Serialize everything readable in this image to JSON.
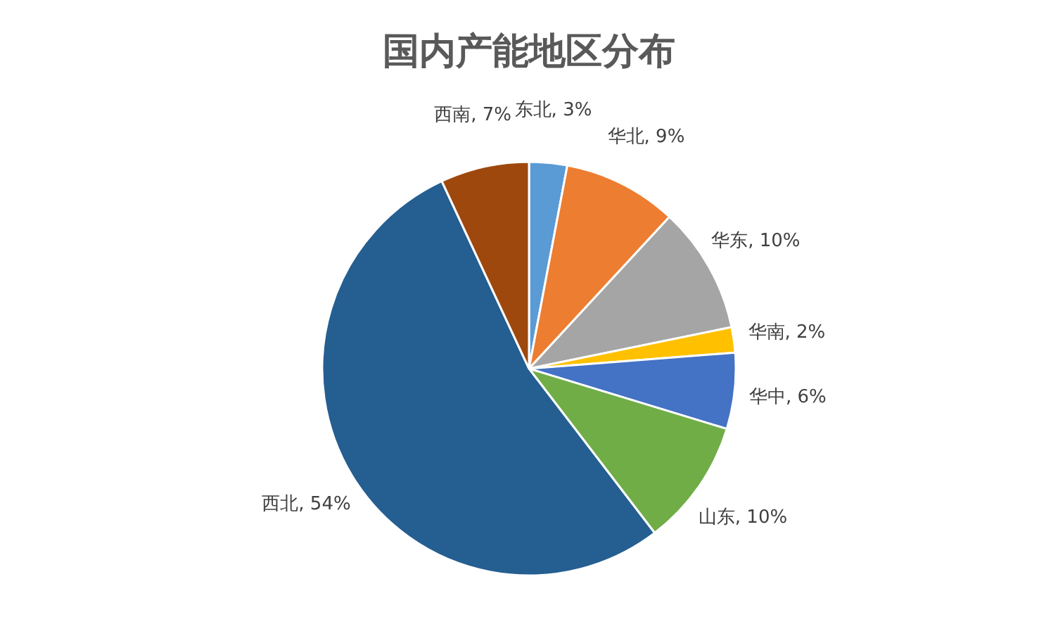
{
  "chart_data": {
    "type": "pie",
    "title": "国内产能地区分布",
    "categories": [
      "东北",
      "华北",
      "华东",
      "华南",
      "华中",
      "山东",
      "西北",
      "西南"
    ],
    "values": [
      3,
      9,
      10,
      2,
      6,
      10,
      54,
      7
    ],
    "colors": [
      "#5b9bd5",
      "#ed7d31",
      "#a5a5a5",
      "#ffc000",
      "#4472c4",
      "#70ad47",
      "#255e91",
      "#9e480e"
    ],
    "value_labels": [
      "3%",
      "9%",
      "10%",
      "2%",
      "6%",
      "10%",
      "54%",
      "7%"
    ]
  }
}
